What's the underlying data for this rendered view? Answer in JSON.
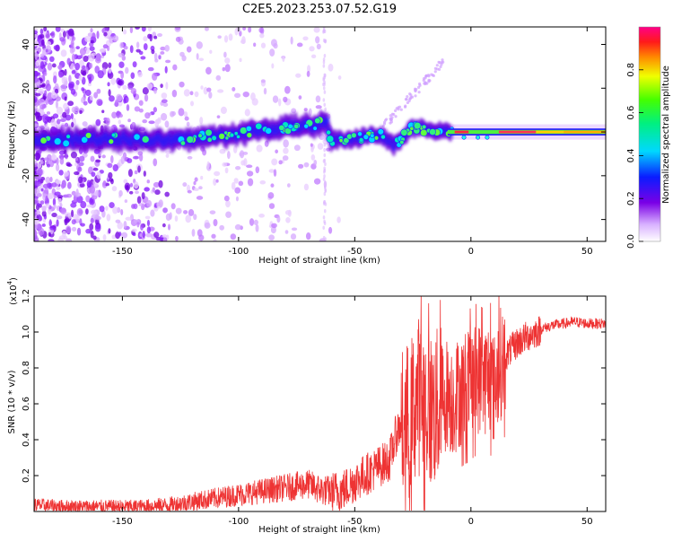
{
  "title": "C2E5.2023.253.07.52.G19",
  "chart_data": [
    {
      "type": "heatmap",
      "xlabel": "Height of straight line (km)",
      "ylabel": "Frequency (Hz)",
      "xlim": [
        -188,
        58
      ],
      "ylim": [
        -50,
        48
      ],
      "xticks": [
        -150,
        -100,
        -50,
        0,
        50
      ],
      "xtick_labels": [
        "-150",
        "-100",
        "-50",
        "0",
        "50"
      ],
      "yticks": [
        -40,
        -20,
        0,
        20,
        40
      ],
      "ytick_labels": [
        "-40",
        "-20",
        "0",
        "20",
        "40"
      ],
      "colorbar": {
        "label": "Normalized spectral amplitude",
        "range": [
          0,
          1
        ],
        "ticks": [
          0.0,
          0.2,
          0.4,
          0.6,
          0.8
        ],
        "tick_labels": [
          "0.0",
          "0.2",
          "0.4",
          "0.6",
          "0.8"
        ]
      },
      "ridge_center_hz": [
        {
          "x": -188,
          "y": -4
        },
        {
          "x": -150,
          "y": -3
        },
        {
          "x": -130,
          "y": -4
        },
        {
          "x": -110,
          "y": -2
        },
        {
          "x": -100,
          "y": -1
        },
        {
          "x": -90,
          "y": 1
        },
        {
          "x": -80,
          "y": 2
        },
        {
          "x": -70,
          "y": 3
        },
        {
          "x": -62,
          "y": 4
        },
        {
          "x": -60,
          "y": -4
        },
        {
          "x": -50,
          "y": -3
        },
        {
          "x": -40,
          "y": -1
        },
        {
          "x": -33,
          "y": -6
        },
        {
          "x": -25,
          "y": 2
        },
        {
          "x": -15,
          "y": 1
        },
        {
          "x": -8,
          "y": 0
        },
        {
          "x": 0,
          "y": 0
        },
        {
          "x": 20,
          "y": 0
        },
        {
          "x": 40,
          "y": 0
        },
        {
          "x": 58,
          "y": 0
        }
      ]
    },
    {
      "type": "line",
      "xlabel": "Height of straight line (km)",
      "ylabel": "SNR (10 * v/v)",
      "y_scale_label": "(x10",
      "y_scale_exp": "4",
      "y_scale_close": ")",
      "xlim": [
        -188,
        58
      ],
      "ylim": [
        0,
        1.2
      ],
      "xticks": [
        -150,
        -100,
        -50,
        0,
        50
      ],
      "xtick_labels": [
        "-150",
        "-100",
        "-50",
        "0",
        "50"
      ],
      "yticks": [
        0.2,
        0.4,
        0.6,
        0.8,
        1.0,
        1.2
      ],
      "ytick_labels": [
        "0.2",
        "0.4",
        "0.6",
        "0.8",
        "1.0",
        "1.2"
      ],
      "series": [
        {
          "name": "SNR",
          "color": "#ee3333",
          "x": [
            -188,
            -175,
            -160,
            -145,
            -130,
            -120,
            -110,
            -100,
            -90,
            -80,
            -70,
            -65,
            -60,
            -55,
            -50,
            -45,
            -40,
            -35,
            -32,
            -30,
            -27,
            -25,
            -23,
            -20,
            -17,
            -15,
            -12,
            -10,
            -8,
            -5,
            -3,
            0,
            3,
            5,
            8,
            10,
            12,
            15,
            18,
            20,
            25,
            30,
            35,
            40,
            45,
            50,
            55,
            58
          ],
          "values": [
            0.04,
            0.03,
            0.03,
            0.03,
            0.04,
            0.06,
            0.08,
            0.1,
            0.12,
            0.14,
            0.16,
            0.13,
            0.12,
            0.13,
            0.18,
            0.22,
            0.26,
            0.3,
            0.45,
            0.5,
            0.55,
            0.6,
            0.7,
            0.65,
            0.6,
            0.62,
            0.65,
            0.7,
            0.65,
            0.7,
            0.72,
            0.75,
            0.78,
            0.75,
            0.8,
            0.7,
            0.85,
            0.88,
            0.92,
            0.95,
            0.99,
            1.02,
            1.04,
            1.05,
            1.06,
            1.05,
            1.05,
            1.05
          ]
        }
      ]
    }
  ]
}
